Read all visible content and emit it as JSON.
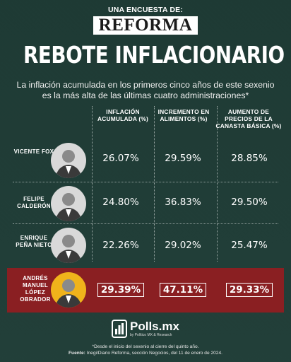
{
  "header": {
    "kicker": "UNA ENCUESTA DE:",
    "brand": "REFORMA",
    "headline": "REBOTE INFLACIONARIO",
    "subtitle": "La inflación acumulada en los primeros cinco años de este sexenio es la más alta de las últimas cuatro administraciones*"
  },
  "columns": [
    "INFLACIÓN ACUMULADA (%)",
    "INCREMENTO EN ALIMENTOS (%)",
    "AUMENTO DE PRECIOS DE LA CANASTA BÁSICA (%)"
  ],
  "rows": [
    {
      "name": "VICENTE FOX",
      "values": [
        "26.07%",
        "29.59%",
        "28.85%"
      ],
      "highlight": false
    },
    {
      "name": "FELIPE CALDERÓN",
      "values": [
        "24.80%",
        "36.83%",
        "29.50%"
      ],
      "highlight": false
    },
    {
      "name": "ENRIQUE PEÑA NIETO",
      "values": [
        "22.26%",
        "29.02%",
        "25.47%"
      ],
      "highlight": false
    },
    {
      "name": "ANDRÉS MANUEL LÓPEZ OBRADOR",
      "values": [
        "29.39%",
        "47.11%",
        "29.33%"
      ],
      "highlight": true
    }
  ],
  "logo": {
    "text": "Polls.mx",
    "sub": "by Político MX & Research"
  },
  "footnote": {
    "note": "*Desde el inicio del sexenio al cierre del quinto año.",
    "source_label": "Fuente:",
    "source": " Inegi/Diario Reforma, sección Negocios, del 11 de enero de 2024."
  },
  "colors": {
    "background": "#1f3d38",
    "highlight_row": "#8a1f22",
    "amlo_avatar": "#f0b31b"
  }
}
